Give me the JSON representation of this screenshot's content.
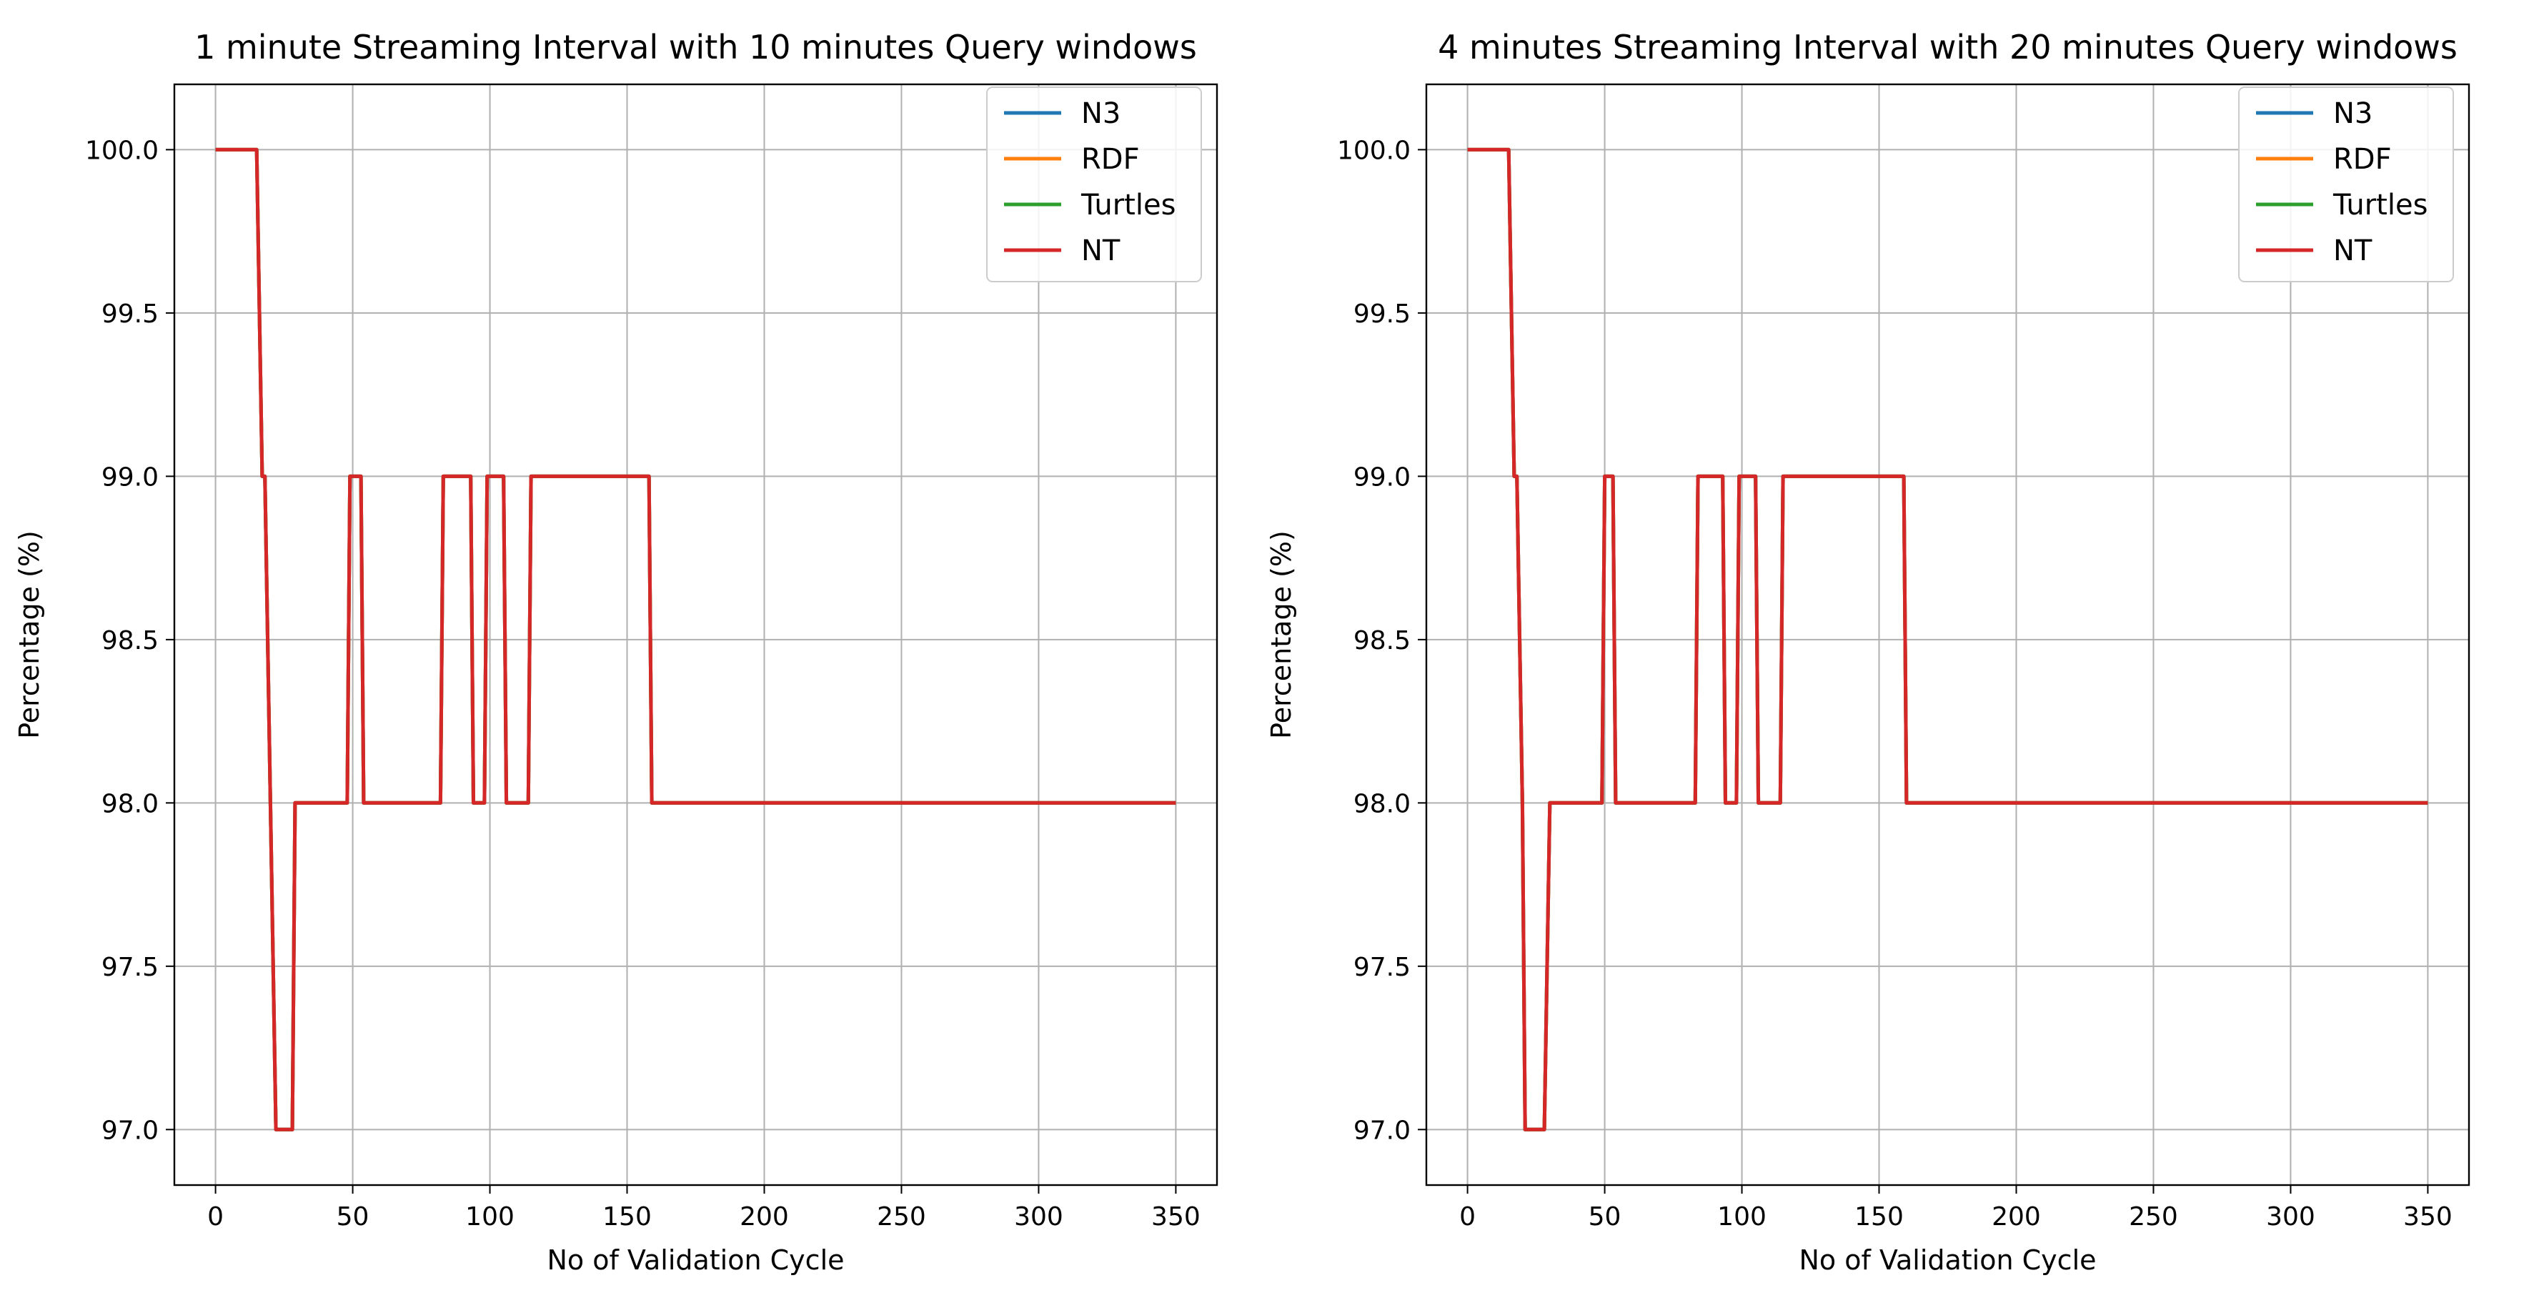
{
  "chart_data": [
    {
      "type": "line",
      "title": "1 minute Streaming Interval with 10 minutes Query windows",
      "xlabel": "No of Validation Cycle",
      "ylabel": "Percentage (%)",
      "xlim": [
        -15,
        365
      ],
      "ylim": [
        96.83,
        100.2
      ],
      "xticks": [
        0,
        50,
        100,
        150,
        200,
        250,
        300,
        350
      ],
      "yticks": [
        "97.0",
        "97.5",
        "98.0",
        "98.5",
        "99.0",
        "99.5",
        "100.0"
      ],
      "grid": true,
      "legend_position": "top-right",
      "series": [
        {
          "name": "N3",
          "color": "#1f77b4"
        },
        {
          "name": "RDF",
          "color": "#ff7f0e"
        },
        {
          "name": "Turtles",
          "color": "#2ca02c"
        },
        {
          "name": "NT",
          "color": "#d62728"
        }
      ],
      "points": [
        [
          0,
          100
        ],
        [
          15,
          100
        ],
        [
          17,
          99
        ],
        [
          18,
          99
        ],
        [
          20,
          98
        ],
        [
          22,
          97
        ],
        [
          28,
          97
        ],
        [
          29,
          98
        ],
        [
          48,
          98
        ],
        [
          49,
          99
        ],
        [
          53,
          99
        ],
        [
          54,
          98
        ],
        [
          82,
          98
        ],
        [
          83,
          99
        ],
        [
          93,
          99
        ],
        [
          94,
          98
        ],
        [
          98,
          98
        ],
        [
          99,
          99
        ],
        [
          105,
          99
        ],
        [
          106,
          98
        ],
        [
          114,
          98
        ],
        [
          115,
          99
        ],
        [
          158,
          99
        ],
        [
          159,
          98
        ],
        [
          350,
          98
        ]
      ]
    },
    {
      "type": "line",
      "title": "4 minutes Streaming Interval with 20 minutes Query windows",
      "xlabel": "No of Validation Cycle",
      "ylabel": "Percentage (%)",
      "xlim": [
        -15,
        365
      ],
      "ylim": [
        96.83,
        100.2
      ],
      "xticks": [
        0,
        50,
        100,
        150,
        200,
        250,
        300,
        350
      ],
      "yticks": [
        "97.0",
        "97.5",
        "98.0",
        "98.5",
        "99.0",
        "99.5",
        "100.0"
      ],
      "grid": true,
      "legend_position": "top-right",
      "series": [
        {
          "name": "N3",
          "color": "#1f77b4"
        },
        {
          "name": "RDF",
          "color": "#ff7f0e"
        },
        {
          "name": "Turtles",
          "color": "#2ca02c"
        },
        {
          "name": "NT",
          "color": "#d62728"
        }
      ],
      "points": [
        [
          0,
          100
        ],
        [
          15,
          100
        ],
        [
          17,
          99
        ],
        [
          18,
          99
        ],
        [
          20,
          98
        ],
        [
          21,
          97
        ],
        [
          28,
          97
        ],
        [
          30,
          98
        ],
        [
          49,
          98
        ],
        [
          50,
          99
        ],
        [
          53,
          99
        ],
        [
          54,
          98
        ],
        [
          83,
          98
        ],
        [
          84,
          99
        ],
        [
          93,
          99
        ],
        [
          94,
          98
        ],
        [
          98,
          98
        ],
        [
          99,
          99
        ],
        [
          105,
          99
        ],
        [
          106,
          98
        ],
        [
          114,
          98
        ],
        [
          115,
          99
        ],
        [
          159,
          99
        ],
        [
          160,
          98
        ],
        [
          350,
          98
        ]
      ]
    }
  ]
}
